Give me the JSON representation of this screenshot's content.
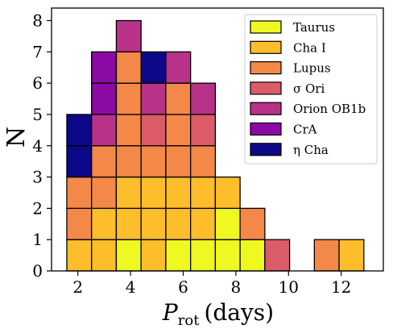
{
  "chart_data": {
    "type": "bar",
    "stacked": true,
    "histogram": true,
    "xlabel_main": "P",
    "xlabel_sub": "rot",
    "xlabel_unit": "(days)",
    "ylabel": "N",
    "xlim": [
      1,
      13.6
    ],
    "ylim": [
      0,
      8.4
    ],
    "xticks": [
      2,
      4,
      6,
      8,
      10,
      12
    ],
    "yticks": [
      0,
      1,
      2,
      3,
      4,
      5,
      6,
      7,
      8
    ],
    "xtick_labels": [
      "2",
      "4",
      "6",
      "8",
      "10",
      "12"
    ],
    "ytick_labels": [
      "0",
      "1",
      "2",
      "3",
      "4",
      "5",
      "6",
      "7",
      "8"
    ],
    "bin_width": 0.94,
    "bin_starts": [
      1.58,
      2.52,
      3.46,
      4.4,
      5.34,
      6.28,
      7.22,
      8.16,
      9.1,
      10.04,
      10.98,
      11.92
    ],
    "legend_position": "top-right",
    "series": [
      {
        "name": "Taurus",
        "color": "#eff821",
        "values": [
          0,
          0,
          1,
          0,
          1,
          1,
          2,
          1,
          0,
          0,
          0,
          0
        ]
      },
      {
        "name": "Cha I",
        "color": "#febd2a",
        "values": [
          1,
          2,
          2,
          3,
          2,
          2,
          1,
          0,
          0,
          0,
          0,
          1
        ]
      },
      {
        "name": "Lupus",
        "color": "#f48849",
        "values": [
          2,
          2,
          4,
          1,
          3,
          1,
          0,
          1,
          0,
          0,
          1,
          0
        ]
      },
      {
        "name": "σ Ori",
        "color": "#db5c68",
        "values": [
          0,
          0,
          0,
          1,
          0,
          1,
          0,
          0,
          1,
          0,
          0,
          0
        ]
      },
      {
        "name": "Orion OB1b",
        "color": "#b83289",
        "values": [
          0,
          1,
          1,
          1,
          1,
          1,
          0,
          0,
          0,
          0,
          0,
          0
        ]
      },
      {
        "name": "CrA",
        "color": "#8b0aa5",
        "values": [
          0,
          2,
          0,
          0,
          0,
          0,
          0,
          0,
          0,
          0,
          0,
          0
        ]
      },
      {
        "name": "η Cha",
        "color": "#0d0887",
        "values": [
          2,
          0,
          0,
          1,
          0,
          0,
          0,
          0,
          0,
          0,
          0,
          0
        ]
      }
    ]
  }
}
